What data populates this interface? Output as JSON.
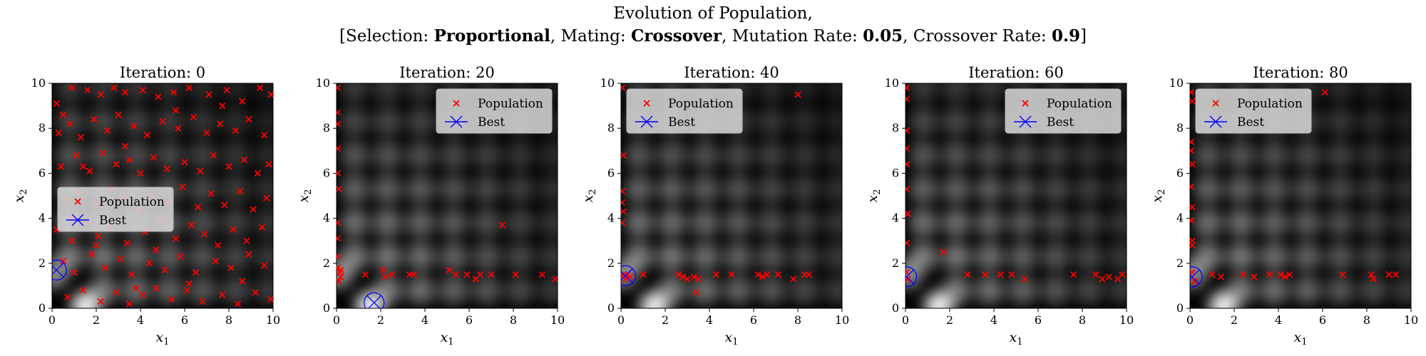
{
  "figure": {
    "title_line1": "Evolution of Population,",
    "title_line2_parts": [
      {
        "text": "[Selection: ",
        "bold": false
      },
      {
        "text": "Proportional",
        "bold": true
      },
      {
        "text": ", Mating: ",
        "bold": false
      },
      {
        "text": "Crossover",
        "bold": true
      },
      {
        "text": ", Mutation Rate: ",
        "bold": false
      },
      {
        "text": "0.05",
        "bold": true
      },
      {
        "text": ", Crossover Rate: ",
        "bold": false
      },
      {
        "text": "0.9",
        "bold": true
      },
      {
        "text": "]",
        "bold": false
      }
    ]
  },
  "colors": {
    "population": "#ff0000",
    "best": "#0000ff",
    "background": "#000000",
    "legend_bg": "#d9d9d9"
  },
  "chart_data": [
    {
      "type": "scatter",
      "title": "Iteration: 0",
      "xlabel": "x_1",
      "ylabel": "x_2",
      "xlim": [
        0,
        10
      ],
      "ylim": [
        0,
        10
      ],
      "xticks": [
        0,
        2,
        4,
        6,
        8,
        10
      ],
      "yticks": [
        0,
        2,
        4,
        6,
        8,
        10
      ],
      "legend": {
        "position": "center-left",
        "entries": [
          "Population",
          "Best"
        ]
      },
      "series": [
        {
          "name": "Population",
          "marker": "x",
          "points": [
            [
              0.2,
              9.1
            ],
            [
              0.5,
              8.6
            ],
            [
              0.9,
              9.8
            ],
            [
              1.6,
              9.7
            ],
            [
              2.2,
              9.5
            ],
            [
              2.8,
              9.8
            ],
            [
              3.3,
              9.6
            ],
            [
              4.1,
              9.7
            ],
            [
              4.8,
              9.4
            ],
            [
              5.5,
              9.6
            ],
            [
              6.2,
              9.8
            ],
            [
              7.1,
              9.5
            ],
            [
              7.9,
              9.7
            ],
            [
              8.6,
              9.2
            ],
            [
              9.4,
              9.8
            ],
            [
              9.9,
              9.5
            ],
            [
              0.3,
              7.8
            ],
            [
              0.8,
              8.2
            ],
            [
              1.3,
              7.6
            ],
            [
              1.9,
              8.4
            ],
            [
              2.5,
              7.9
            ],
            [
              3.0,
              8.6
            ],
            [
              3.7,
              8.1
            ],
            [
              4.3,
              7.7
            ],
            [
              5.0,
              8.3
            ],
            [
              5.7,
              8.0
            ],
            [
              6.4,
              8.5
            ],
            [
              7.0,
              7.8
            ],
            [
              7.6,
              8.2
            ],
            [
              8.3,
              7.9
            ],
            [
              8.9,
              8.4
            ],
            [
              9.6,
              7.7
            ],
            [
              0.4,
              6.3
            ],
            [
              1.1,
              6.8
            ],
            [
              1.7,
              6.1
            ],
            [
              2.3,
              6.9
            ],
            [
              2.9,
              6.4
            ],
            [
              3.5,
              6.6
            ],
            [
              4.0,
              6.0
            ],
            [
              4.6,
              6.7
            ],
            [
              5.2,
              6.2
            ],
            [
              6.0,
              6.5
            ],
            [
              6.7,
              6.1
            ],
            [
              7.3,
              6.8
            ],
            [
              8.0,
              6.3
            ],
            [
              8.7,
              6.6
            ],
            [
              9.3,
              6.0
            ],
            [
              9.8,
              6.4
            ],
            [
              0.6,
              4.8
            ],
            [
              1.2,
              5.2
            ],
            [
              2.0,
              4.6
            ],
            [
              2.7,
              5.3
            ],
            [
              3.2,
              4.9
            ],
            [
              3.9,
              4.4
            ],
            [
              4.5,
              5.0
            ],
            [
              5.3,
              4.7
            ],
            [
              5.9,
              5.4
            ],
            [
              6.6,
              4.5
            ],
            [
              7.2,
              5.1
            ],
            [
              7.8,
              4.6
            ],
            [
              8.5,
              5.2
            ],
            [
              9.1,
              4.4
            ],
            [
              9.7,
              4.9
            ],
            [
              0.2,
              3.5
            ],
            [
              0.9,
              3.0
            ],
            [
              1.5,
              3.8
            ],
            [
              2.1,
              3.2
            ],
            [
              2.6,
              3.6
            ],
            [
              3.4,
              2.9
            ],
            [
              4.2,
              3.4
            ],
            [
              4.9,
              3.9
            ],
            [
              5.6,
              3.1
            ],
            [
              6.3,
              3.7
            ],
            [
              6.9,
              3.3
            ],
            [
              7.5,
              2.8
            ],
            [
              8.2,
              3.5
            ],
            [
              8.8,
              3.0
            ],
            [
              9.5,
              3.6
            ],
            [
              0.5,
              2.1
            ],
            [
              1.0,
              1.6
            ],
            [
              1.8,
              2.4
            ],
            [
              2.4,
              1.8
            ],
            [
              3.1,
              2.2
            ],
            [
              3.6,
              1.5
            ],
            [
              4.4,
              2.0
            ],
            [
              5.1,
              1.7
            ],
            [
              5.8,
              2.3
            ],
            [
              6.5,
              1.6
            ],
            [
              7.4,
              2.1
            ],
            [
              8.1,
              1.8
            ],
            [
              8.9,
              2.4
            ],
            [
              9.6,
              1.9
            ],
            [
              0.7,
              0.5
            ],
            [
              1.4,
              0.8
            ],
            [
              2.2,
              0.3
            ],
            [
              2.9,
              0.7
            ],
            [
              3.5,
              0.2
            ],
            [
              4.1,
              0.6
            ],
            [
              4.7,
              0.9
            ],
            [
              5.4,
              0.4
            ],
            [
              6.1,
              0.8
            ],
            [
              6.8,
              0.3
            ],
            [
              7.7,
              0.6
            ],
            [
              8.4,
              0.2
            ],
            [
              9.2,
              0.7
            ],
            [
              9.9,
              0.4
            ],
            [
              1.4,
              6.3
            ],
            [
              3.3,
              7.2
            ],
            [
              5.6,
              8.8
            ],
            [
              7.7,
              9.0
            ],
            [
              2.0,
              2.8
            ],
            [
              4.7,
              2.6
            ],
            [
              6.2,
              1.1
            ],
            [
              8.6,
              1.2
            ],
            [
              3.8,
              0.9
            ],
            [
              0.9,
              4.1
            ]
          ]
        },
        {
          "name": "Best",
          "marker": "x-circle",
          "points": [
            [
              0.2,
              1.7
            ]
          ]
        }
      ]
    },
    {
      "type": "scatter",
      "title": "Iteration: 20",
      "xlabel": "x_1",
      "ylabel": "x_2",
      "xlim": [
        0,
        10
      ],
      "ylim": [
        0,
        10
      ],
      "xticks": [
        0,
        2,
        4,
        6,
        8,
        10
      ],
      "yticks": [
        0,
        2,
        4,
        6,
        8,
        10
      ],
      "legend": {
        "position": "top-right",
        "entries": [
          "Population",
          "Best"
        ]
      },
      "series": [
        {
          "name": "Population",
          "marker": "x",
          "points": [
            [
              0.05,
              9.8
            ],
            [
              0.05,
              8.7
            ],
            [
              0.05,
              8.2
            ],
            [
              0.05,
              7.1
            ],
            [
              0.05,
              6.0
            ],
            [
              0.1,
              5.3
            ],
            [
              0.05,
              3.8
            ],
            [
              0.05,
              3.1
            ],
            [
              0.05,
              2.3
            ],
            [
              0.05,
              1.8
            ],
            [
              0.15,
              1.6
            ],
            [
              0.2,
              1.4
            ],
            [
              0.1,
              1.2
            ],
            [
              0.2,
              1.7
            ],
            [
              1.3,
              1.5
            ],
            [
              2.1,
              1.7
            ],
            [
              2.2,
              1.4
            ],
            [
              2.5,
              1.5
            ],
            [
              3.3,
              1.5
            ],
            [
              3.5,
              1.5
            ],
            [
              5.1,
              1.7
            ],
            [
              5.4,
              1.5
            ],
            [
              5.9,
              1.5
            ],
            [
              6.3,
              1.3
            ],
            [
              6.5,
              1.5
            ],
            [
              7.0,
              1.5
            ],
            [
              7.5,
              3.7
            ],
            [
              8.1,
              1.5
            ],
            [
              9.3,
              1.5
            ],
            [
              9.9,
              1.3
            ]
          ]
        },
        {
          "name": "Best",
          "marker": "x-circle",
          "points": [
            [
              1.7,
              0.25
            ]
          ]
        }
      ]
    },
    {
      "type": "scatter",
      "title": "Iteration: 40",
      "xlabel": "x_1",
      "ylabel": "x_2",
      "xlim": [
        0,
        10
      ],
      "ylim": [
        0,
        10
      ],
      "xticks": [
        0,
        2,
        4,
        6,
        8,
        10
      ],
      "yticks": [
        0,
        2,
        4,
        6,
        8,
        10
      ],
      "legend": {
        "position": "top-left",
        "entries": [
          "Population",
          "Best"
        ]
      },
      "series": [
        {
          "name": "Population",
          "marker": "x",
          "points": [
            [
              0.05,
              9.8
            ],
            [
              0.1,
              6.8
            ],
            [
              0.05,
              5.2
            ],
            [
              0.05,
              4.7
            ],
            [
              0.1,
              4.3
            ],
            [
              0.05,
              3.8
            ],
            [
              0.1,
              1.5
            ],
            [
              0.2,
              1.3
            ],
            [
              0.3,
              1.5
            ],
            [
              0.4,
              1.4
            ],
            [
              1.0,
              1.5
            ],
            [
              2.6,
              1.5
            ],
            [
              2.8,
              1.4
            ],
            [
              3.0,
              1.3
            ],
            [
              3.3,
              1.4
            ],
            [
              3.5,
              1.3
            ],
            [
              3.4,
              0.7
            ],
            [
              4.3,
              1.5
            ],
            [
              5.0,
              1.5
            ],
            [
              6.2,
              1.5
            ],
            [
              6.4,
              1.4
            ],
            [
              6.6,
              1.5
            ],
            [
              7.1,
              1.5
            ],
            [
              7.8,
              1.3
            ],
            [
              8.0,
              9.5
            ],
            [
              8.3,
              1.5
            ],
            [
              8.5,
              1.5
            ]
          ]
        },
        {
          "name": "Best",
          "marker": "x-circle",
          "points": [
            [
              0.2,
              1.45
            ]
          ]
        }
      ]
    },
    {
      "type": "scatter",
      "title": "Iteration: 60",
      "xlabel": "x_1",
      "ylabel": "x_2",
      "xlim": [
        0,
        10
      ],
      "ylim": [
        0,
        10
      ],
      "xticks": [
        0,
        2,
        4,
        6,
        8,
        10
      ],
      "yticks": [
        0,
        2,
        4,
        6,
        8,
        10
      ],
      "legend": {
        "position": "top-right",
        "entries": [
          "Population",
          "Best"
        ]
      },
      "series": [
        {
          "name": "Population",
          "marker": "x",
          "points": [
            [
              0.05,
              9.8
            ],
            [
              0.05,
              9.3
            ],
            [
              0.05,
              7.9
            ],
            [
              0.05,
              7.1
            ],
            [
              0.05,
              6.4
            ],
            [
              0.05,
              5.3
            ],
            [
              0.1,
              4.2
            ],
            [
              0.05,
              2.9
            ],
            [
              0.05,
              1.6
            ],
            [
              0.1,
              1.3
            ],
            [
              1.7,
              2.5
            ],
            [
              2.8,
              1.5
            ],
            [
              3.6,
              1.5
            ],
            [
              4.3,
              1.5
            ],
            [
              4.8,
              1.5
            ],
            [
              5.4,
              1.3
            ],
            [
              7.6,
              1.5
            ],
            [
              8.6,
              1.5
            ],
            [
              8.9,
              1.3
            ],
            [
              9.2,
              1.4
            ],
            [
              9.6,
              1.3
            ],
            [
              9.8,
              1.5
            ]
          ]
        },
        {
          "name": "Best",
          "marker": "x-circle",
          "points": [
            [
              0.05,
              1.4
            ]
          ]
        }
      ]
    },
    {
      "type": "scatter",
      "title": "Iteration: 80",
      "xlabel": "x_1",
      "ylabel": "x_2",
      "xlim": [
        0,
        10
      ],
      "ylim": [
        0,
        10
      ],
      "xticks": [
        0,
        2,
        4,
        6,
        8,
        10
      ],
      "yticks": [
        0,
        2,
        4,
        6,
        8,
        10
      ],
      "legend": {
        "position": "top-left",
        "entries": [
          "Population",
          "Best"
        ]
      },
      "series": [
        {
          "name": "Population",
          "marker": "x",
          "points": [
            [
              0.05,
              9.6
            ],
            [
              0.1,
              9.2
            ],
            [
              0.05,
              7.4
            ],
            [
              0.05,
              7.0
            ],
            [
              0.1,
              6.4
            ],
            [
              0.05,
              5.4
            ],
            [
              0.1,
              4.5
            ],
            [
              0.05,
              3.9
            ],
            [
              0.1,
              3.0
            ],
            [
              0.1,
              2.8
            ],
            [
              0.1,
              1.6
            ],
            [
              0.2,
              1.2
            ],
            [
              1.0,
              1.5
            ],
            [
              1.4,
              1.4
            ],
            [
              2.4,
              1.5
            ],
            [
              2.9,
              1.4
            ],
            [
              3.6,
              1.5
            ],
            [
              4.1,
              1.5
            ],
            [
              4.3,
              1.4
            ],
            [
              4.5,
              1.5
            ],
            [
              6.1,
              9.6
            ],
            [
              6.9,
              1.5
            ],
            [
              8.2,
              1.5
            ],
            [
              8.3,
              1.3
            ],
            [
              9.0,
              1.5
            ],
            [
              9.3,
              1.5
            ]
          ]
        },
        {
          "name": "Best",
          "marker": "x-circle",
          "points": [
            [
              0.1,
              1.4
            ]
          ]
        }
      ]
    }
  ]
}
